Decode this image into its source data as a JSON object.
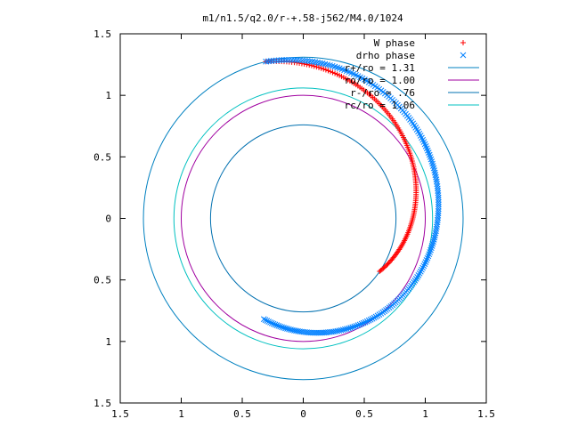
{
  "chart_data": {
    "type": "scatter",
    "title": "m1/n1.5/q2.0/r-+.58-j562/M4.0/1024",
    "xlabel": "",
    "ylabel": "",
    "xlim": [
      -1.5,
      1.5
    ],
    "ylim": [
      -1.5,
      1.5
    ],
    "x_tick_labels": [
      "1.5",
      "1",
      "0.5",
      "0",
      "0.5",
      "1",
      "1.5"
    ],
    "x_tick_values": [
      -1.5,
      -1,
      -0.5,
      0,
      0.5,
      1,
      1.5
    ],
    "y_tick_labels": [
      "1.5",
      "1",
      "0.5",
      "0",
      "0.5",
      "1",
      "1.5"
    ],
    "y_tick_values": [
      1.5,
      1,
      0.5,
      0,
      -0.5,
      -1,
      -1.5
    ],
    "grid": false,
    "legend_position": "top-right",
    "series": [
      {
        "name": "W phase",
        "kind": "points",
        "marker": "plus",
        "color": "#ff0000",
        "spiral": {
          "r_start": 1.31,
          "theta_start_deg": 103.5,
          "r_end": 0.76,
          "theta_end_deg": -34.5,
          "count": 150
        }
      },
      {
        "name": "drho phase",
        "kind": "points",
        "marker": "cross",
        "color": "#0080ff",
        "spiral": {
          "r_start": 1.31,
          "theta_start_deg": 103.5,
          "r_end": 0.88,
          "theta_end_deg": -111.5,
          "count": 230
        }
      },
      {
        "name": "r+/ro = 1.31",
        "kind": "circle",
        "r": 1.31,
        "color": "#0080c0"
      },
      {
        "name": "ro/ro = 1.00",
        "kind": "circle",
        "r": 1.0,
        "color": "#a000a0"
      },
      {
        "name": "r-/ro = .76",
        "kind": "circle",
        "r": 0.76,
        "color": "#0070b0"
      },
      {
        "name": "rc/ro = 1.06",
        "kind": "circle",
        "r": 1.06,
        "color": "#00c0c0"
      }
    ]
  }
}
